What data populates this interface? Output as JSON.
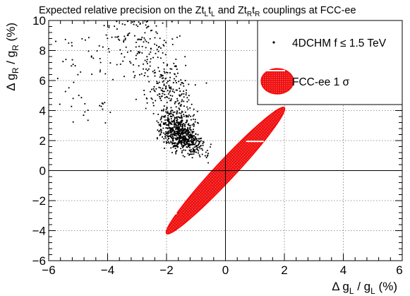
{
  "chart_data": {
    "type": "scatter",
    "title": {
      "prefix": "Expected relative precision on the Zt",
      "mid1": "t",
      "mid2": " and Zt",
      "mid3": "t",
      "suffix": " couplings at FCC-ee",
      "sub_L": "L",
      "sub_R": "R"
    },
    "xlabel": {
      "delta": "Δ g",
      "sub": "L",
      "rest": " / g",
      "sub2": "L",
      "unit": " (%)"
    },
    "ylabel": {
      "delta": "Δ g",
      "sub": "R",
      "rest": " / g",
      "sub2": "R",
      "unit": " (%)"
    },
    "xlim": [
      -6,
      6
    ],
    "ylim": [
      -6,
      10
    ],
    "x_ticks": [
      "−6",
      "−4",
      "−2",
      "0",
      "2",
      "4",
      "6"
    ],
    "x_tick_values": [
      -6,
      -4,
      -2,
      0,
      2,
      4,
      6
    ],
    "y_ticks": [
      "−6",
      "−4",
      "−2",
      "0",
      "2",
      "4",
      "6",
      "8",
      "10"
    ],
    "y_tick_values": [
      -6,
      -4,
      -2,
      0,
      2,
      4,
      6,
      8,
      10
    ],
    "grid": true,
    "legend": {
      "placement": "top-right",
      "entries": [
        {
          "label": "4DCHM f ≤ 1.5 TeV",
          "marker": "dot"
        },
        {
          "label": "FCC-ee 1 σ",
          "marker": "ellipse"
        }
      ]
    },
    "series": [
      {
        "name": "4DCHM f ≤ 1.5 TeV",
        "kind": "scatter_cloud",
        "color": "#000000",
        "cloud": {
          "core_center": [
            -1.5,
            2.3
          ],
          "core_spread": [
            0.45,
            0.75
          ],
          "upper_region_x": [
            -4.2,
            -0.3
          ],
          "upper_region_y": [
            3,
            10
          ],
          "upper_region_mean_x": -2.5,
          "sparse_left_x": [
            -5.8,
            -4
          ],
          "sparse_left_y": [
            3,
            9
          ],
          "count": 1100
        }
      },
      {
        "name": "FCC-ee 1 σ",
        "kind": "ellipse",
        "fill": "#ee1111",
        "stroke": "#ff0000",
        "center": [
          0,
          0
        ],
        "extremes": [
          [
            -2,
            -4.2
          ],
          [
            2,
            4.2
          ]
        ],
        "semi_minor": 0.33,
        "tick_marks": [
          [
            -2.3,
            -3.25,
            -1.65,
            -2.85
          ],
          [
            0.7,
            1.95,
            1.3,
            1.95
          ]
        ]
      }
    ],
    "colors": {
      "frame": "#000000",
      "grid": "#777777",
      "ellipse": "#ee1111",
      "ellipse_hatch": "#ff6666"
    }
  }
}
